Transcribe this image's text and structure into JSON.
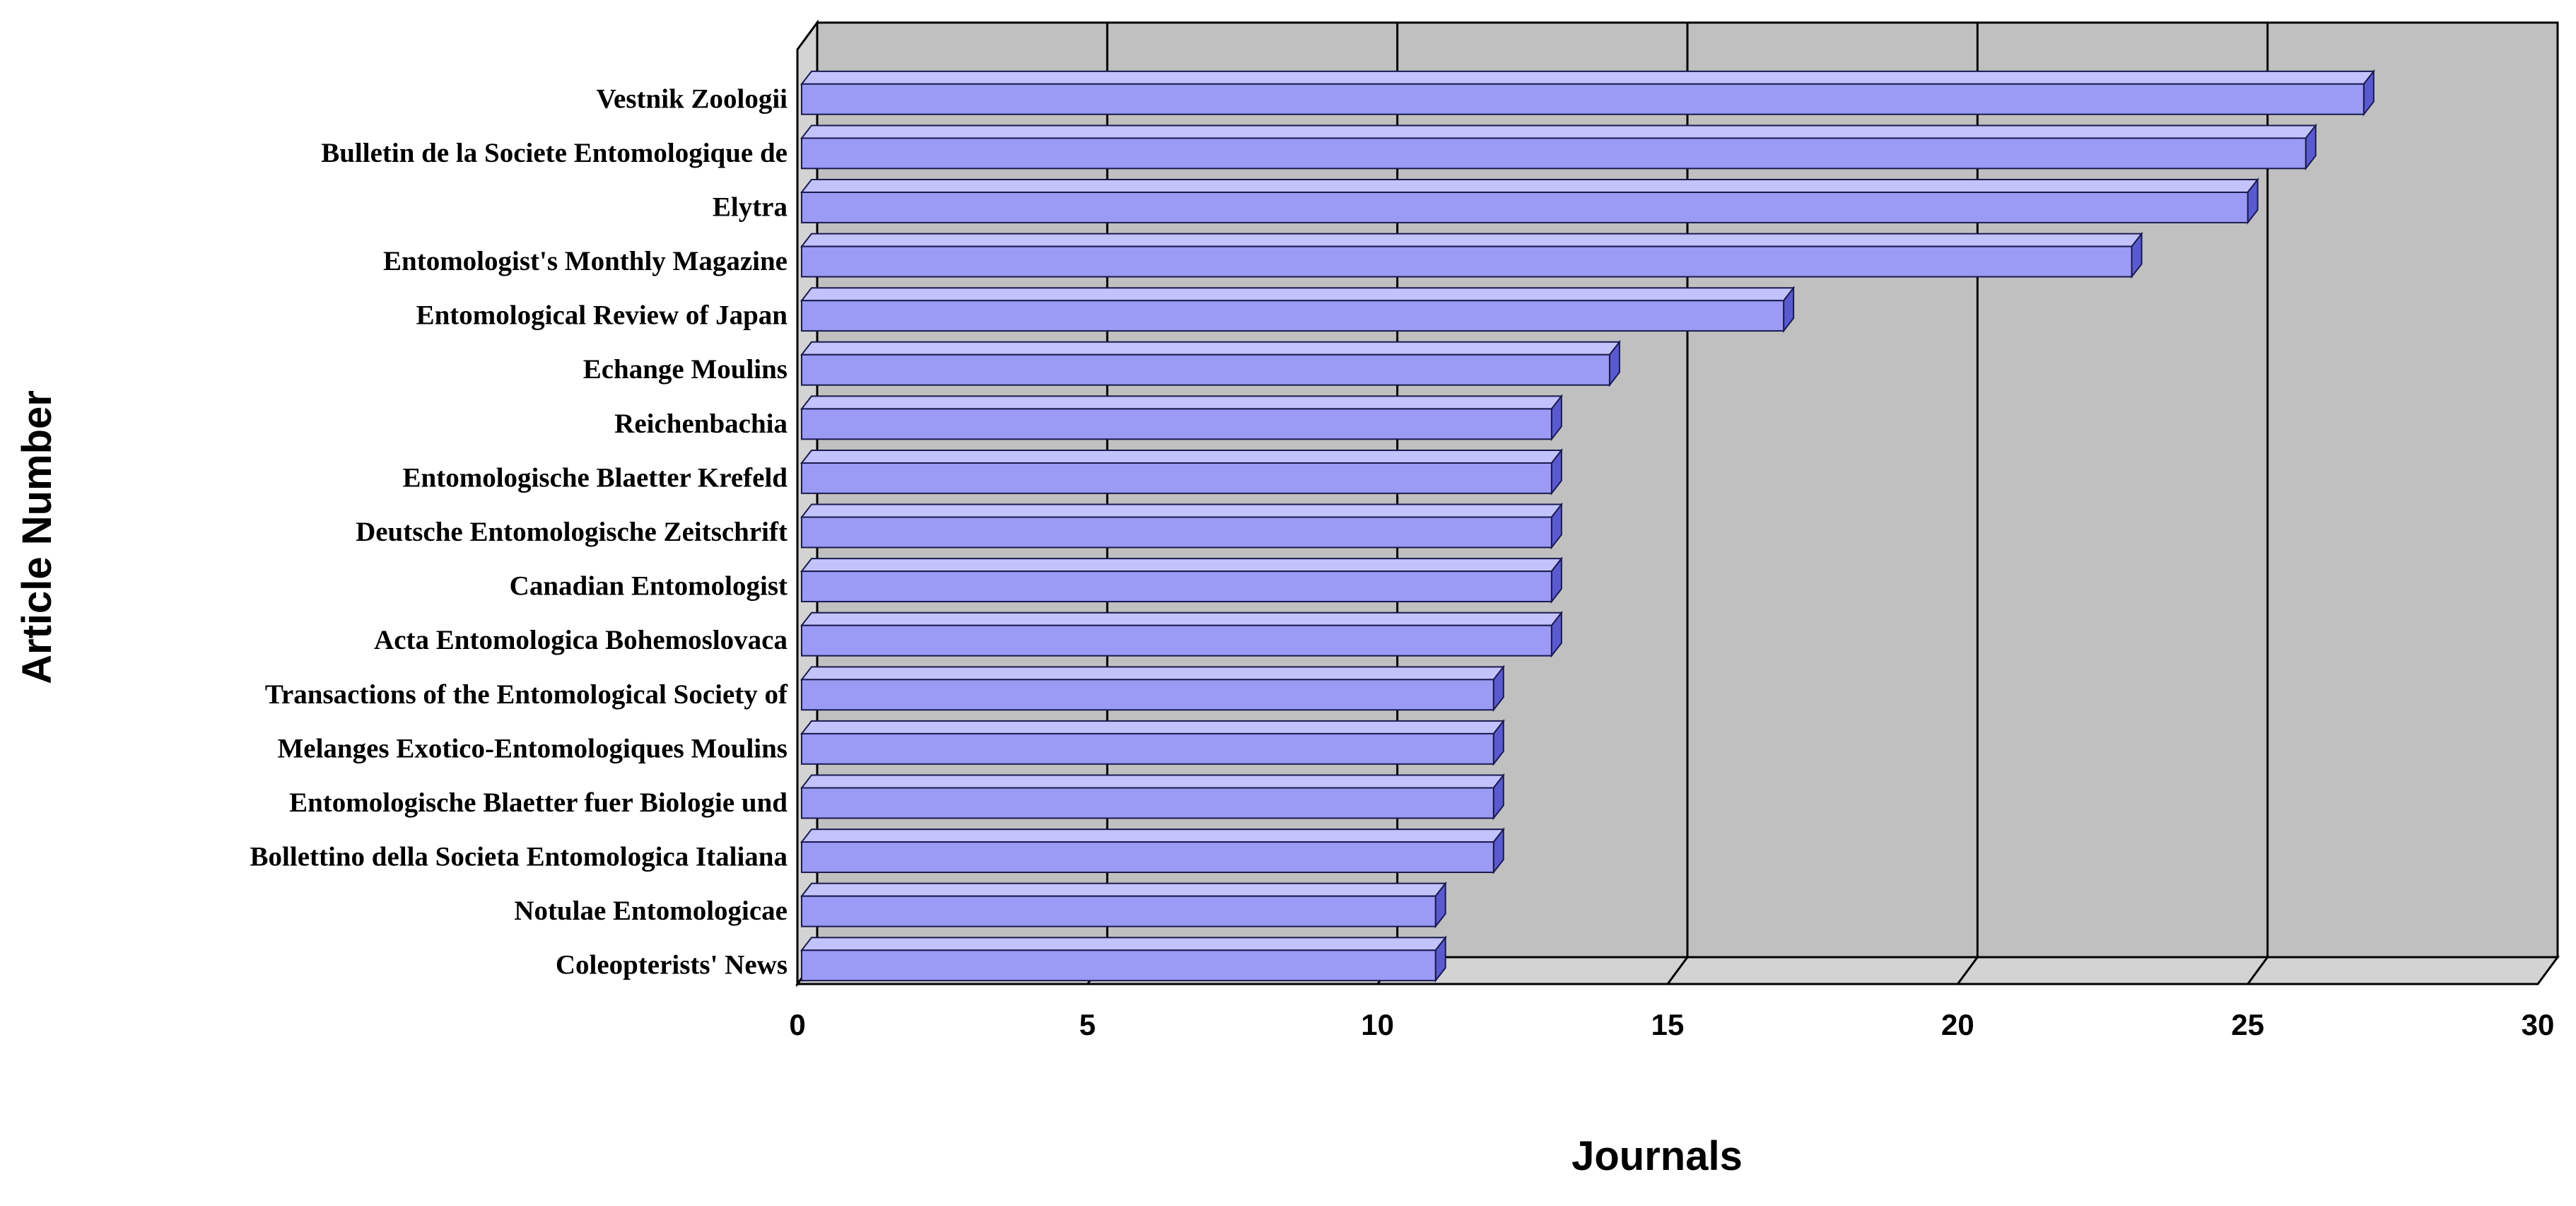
{
  "chart_data": {
    "type": "bar",
    "orientation": "horizontal",
    "style": "3d",
    "xlabel": "Journals",
    "ylabel": "Article Number",
    "xlim": [
      0,
      30
    ],
    "xticks": [
      0,
      5,
      10,
      15,
      20,
      25,
      30
    ],
    "grid": "vertical",
    "legend": "none",
    "categories": [
      "Vestnik Zoologii",
      "Bulletin de la Societe Entomologique de",
      "Elytra",
      "Entomologist's Monthly Magazine",
      "Entomological Review of Japan",
      "Echange Moulins",
      "Reichenbachia",
      "Entomologische Blaetter Krefeld",
      "Deutsche Entomologische Zeitschrift",
      "Canadian Entomologist",
      "Acta Entomologica Bohemoslovaca",
      "Transactions of the Entomological Society of",
      "Melanges Exotico-Entomologiques Moulins",
      "Entomologische Blaetter fuer Biologie und",
      "Bollettino della Societa Entomologica Italiana",
      "Notulae Entomologicae",
      "Coleopterists' News"
    ],
    "values": [
      27,
      26,
      25,
      23,
      17,
      14,
      13,
      13,
      13,
      13,
      13,
      12,
      12,
      12,
      12,
      11,
      11
    ],
    "colors": {
      "bar_front": "#9b9bf5",
      "bar_top": "#c3c3fb",
      "bar_side": "#5a5ad0",
      "bar_stroke": "#1a1a50",
      "wall": "#c0c0c0",
      "floor": "#d3d3d3"
    }
  }
}
